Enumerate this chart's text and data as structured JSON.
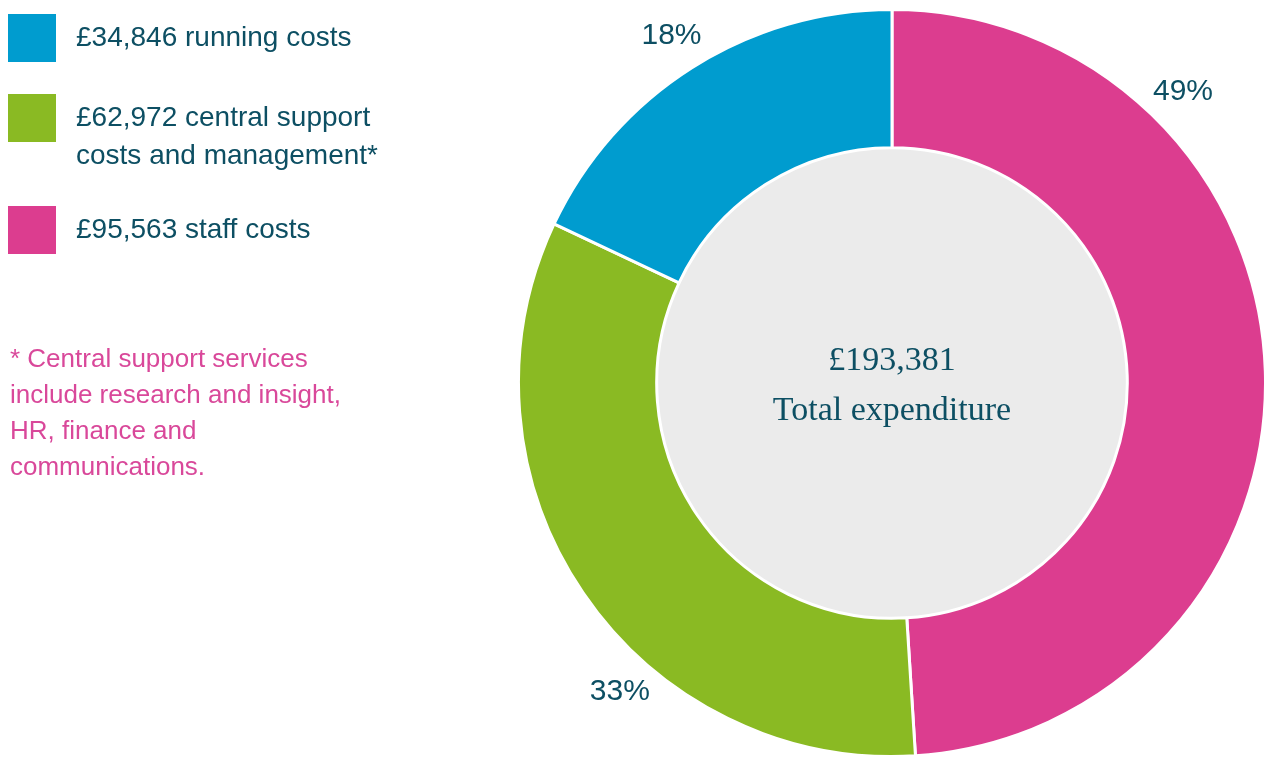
{
  "chart_data": {
    "type": "donut",
    "categories": [
      "£95,563 staff costs",
      "£62,972 central support costs and management*",
      "£34,846 running costs"
    ],
    "values": [
      49,
      33,
      18
    ],
    "value_labels": [
      "49%",
      "33%",
      "18%"
    ],
    "colors": [
      "#dc3d8f",
      "#8aba23",
      "#009ccf"
    ],
    "legend": "top left",
    "annotations": [
      "£193,381",
      "Total expenditure",
      "* Central support services include research and insight, HR, finance and communications."
    ]
  }
}
